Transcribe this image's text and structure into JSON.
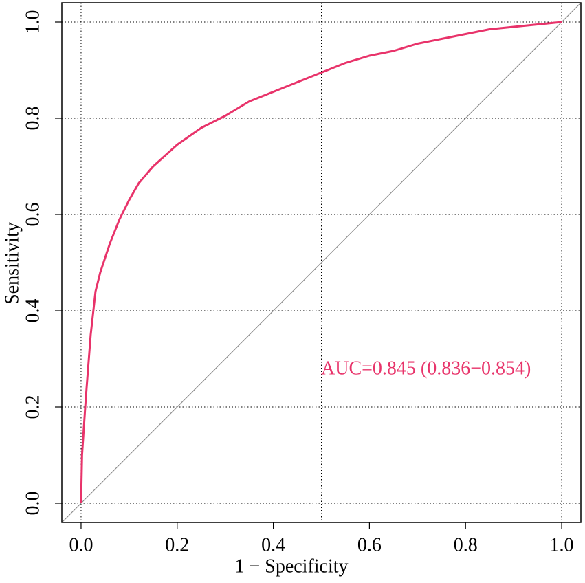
{
  "chart_data": {
    "type": "line",
    "xlabel": "1 − Specificity",
    "ylabel": "Sensitivity",
    "annotation": "AUC=0.845 (0.836−0.854)",
    "xlim": [
      -0.04,
      1.04
    ],
    "ylim": [
      -0.04,
      1.04
    ],
    "xticks": [
      {
        "value": 0,
        "label": "0.0"
      },
      0.2,
      0.4,
      0.6,
      0.8,
      {
        "value": 1,
        "label": "1.0"
      }
    ],
    "yticks": [
      {
        "value": 0,
        "label": "0.0"
      },
      0.2,
      0.4,
      0.6,
      0.8,
      {
        "value": 1,
        "label": "1.0"
      }
    ],
    "xgrid": [
      0,
      0.5,
      1
    ],
    "grid": true,
    "reference_line": true,
    "reference_color": "#8c8c8c",
    "series": [
      {
        "color": "#e8336a",
        "x": [
          0,
          0.002,
          0.01,
          0.02,
          0.03,
          0.04,
          0.06,
          0.08,
          0.1,
          0.12,
          0.15,
          0.2,
          0.25,
          0.3,
          0.35,
          0.4,
          0.45,
          0.5,
          0.55,
          0.6,
          0.65,
          0.7,
          0.75,
          0.8,
          0.85,
          0.9,
          0.95,
          1
        ],
        "values": [
          0,
          0.1,
          0.22,
          0.35,
          0.44,
          0.48,
          0.54,
          0.59,
          0.63,
          0.665,
          0.7,
          0.745,
          0.78,
          0.805,
          0.835,
          0.855,
          0.875,
          0.895,
          0.915,
          0.93,
          0.94,
          0.955,
          0.965,
          0.975,
          0.985,
          0.99,
          0.995,
          1
        ]
      }
    ]
  }
}
